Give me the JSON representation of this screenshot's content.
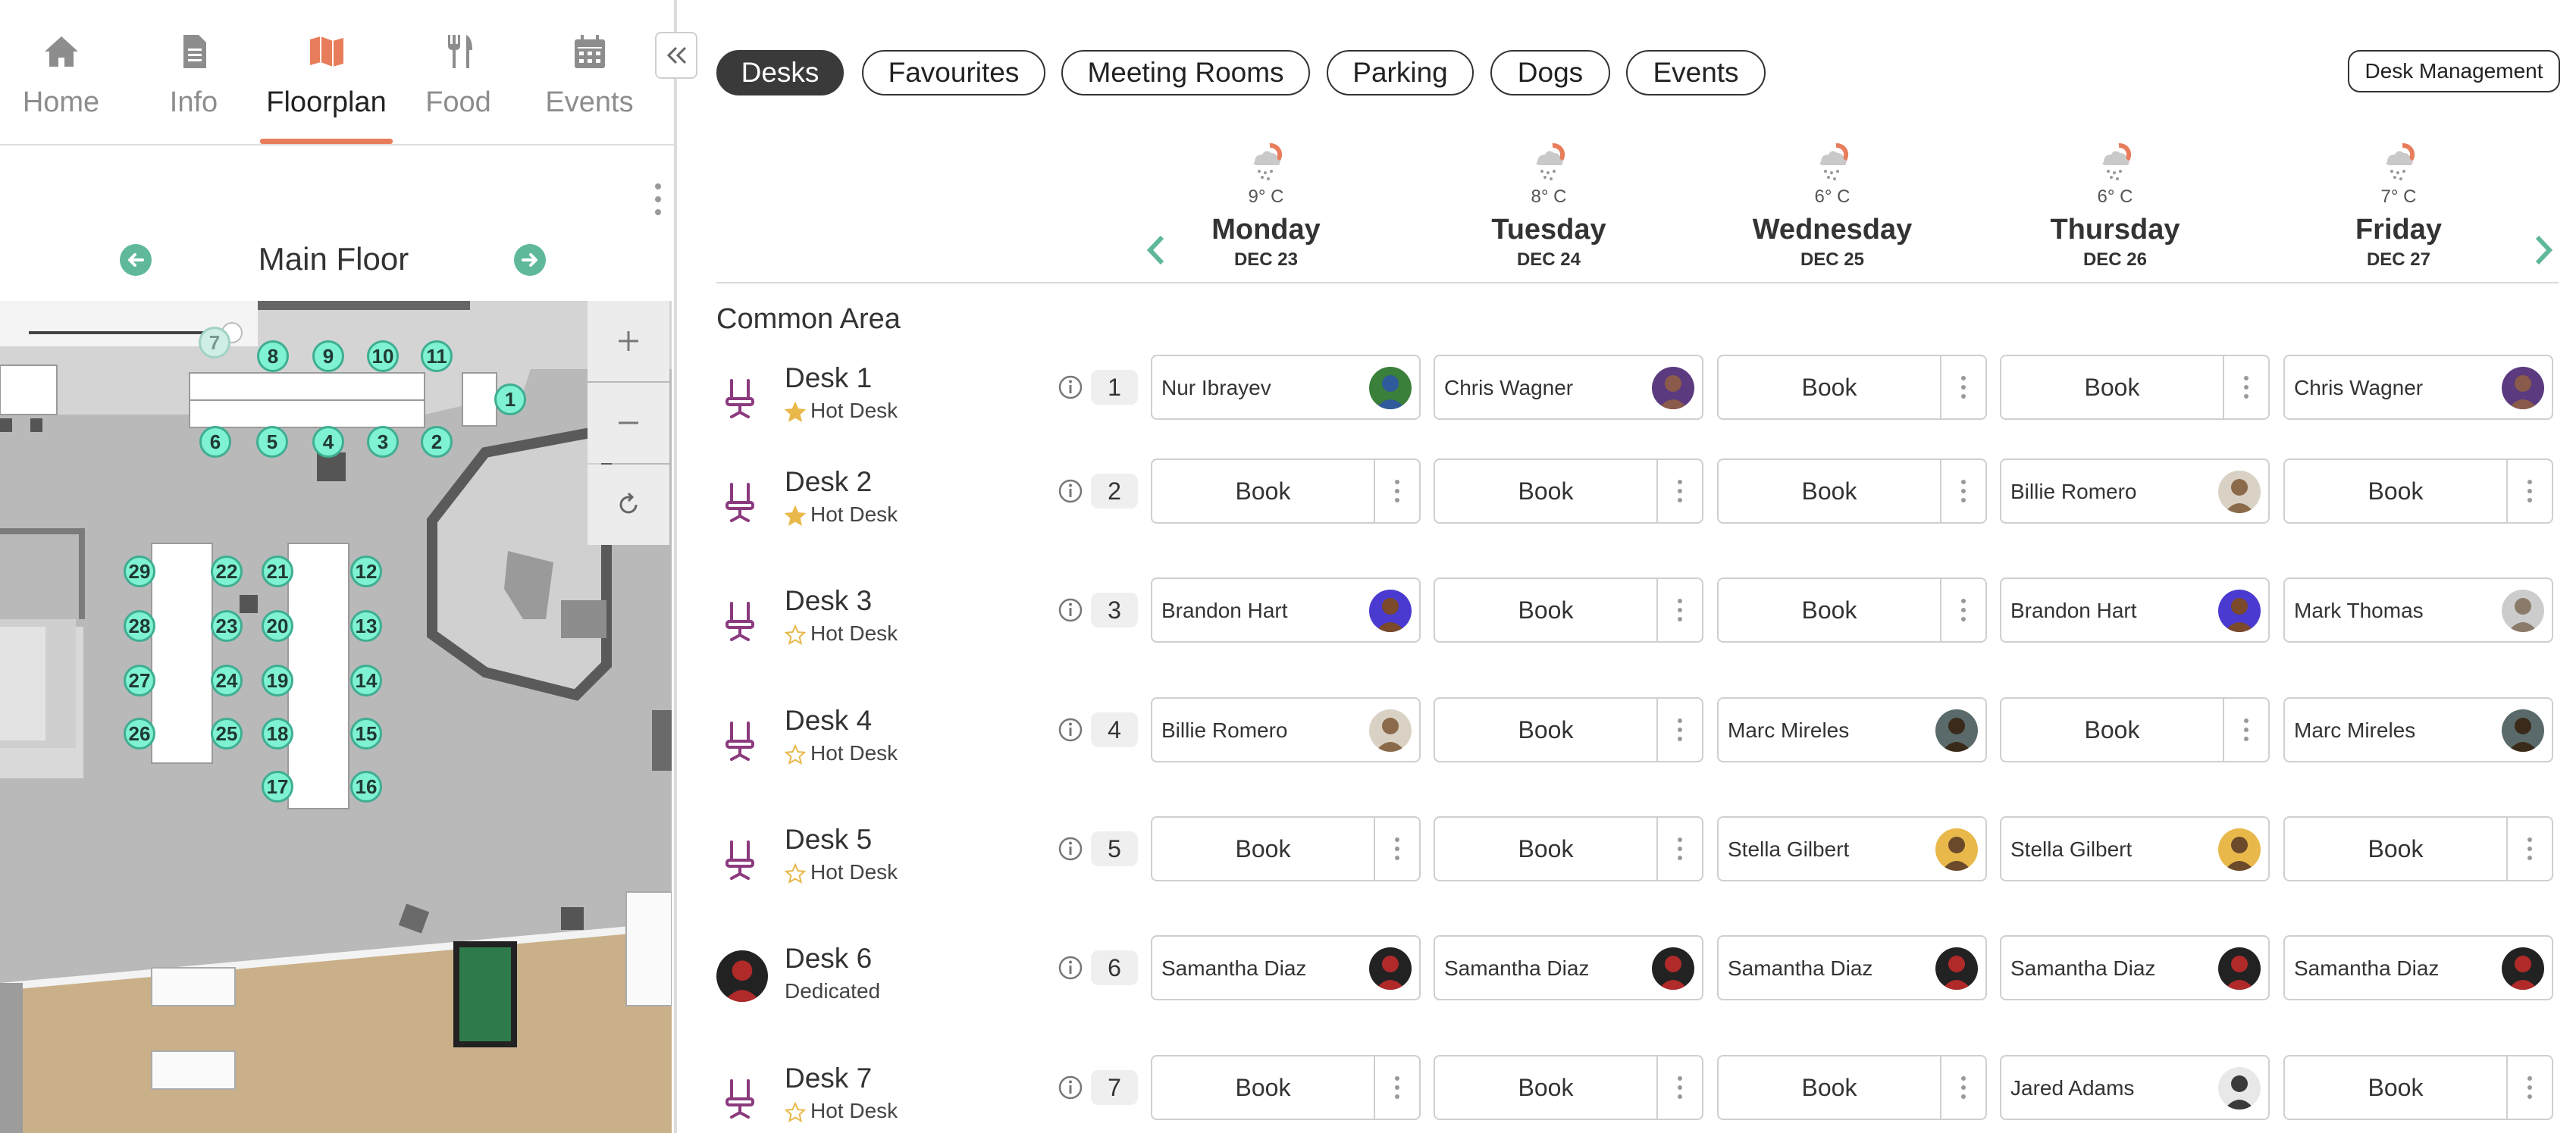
{
  "nav": {
    "items": [
      {
        "label": "Home",
        "icon": "home-icon"
      },
      {
        "label": "Info",
        "icon": "document-icon"
      },
      {
        "label": "Floorplan",
        "icon": "map-icon",
        "active": true
      },
      {
        "label": "Food",
        "icon": "fork-knife-icon"
      },
      {
        "label": "Events",
        "icon": "calendar-icon"
      }
    ]
  },
  "floor": {
    "title": "Main Floor"
  },
  "map": {
    "pins": [
      "7",
      "8",
      "9",
      "10",
      "11",
      "1",
      "6",
      "5",
      "4",
      "3",
      "2",
      "29",
      "22",
      "21",
      "12",
      "28",
      "23",
      "20",
      "13",
      "27",
      "24",
      "19",
      "14",
      "26",
      "25",
      "18",
      "15",
      "17",
      "16"
    ]
  },
  "tabs": [
    {
      "label": "Desks",
      "active": true
    },
    {
      "label": "Favourites"
    },
    {
      "label": "Meeting Rooms"
    },
    {
      "label": "Parking"
    },
    {
      "label": "Dogs"
    },
    {
      "label": "Events"
    }
  ],
  "desk_management": "Desk Management",
  "days": [
    {
      "name": "Monday",
      "date": "DEC 23",
      "temp": "9° C"
    },
    {
      "name": "Tuesday",
      "date": "DEC 24",
      "temp": "8° C"
    },
    {
      "name": "Wednesday",
      "date": "DEC 25",
      "temp": "6° C"
    },
    {
      "name": "Thursday",
      "date": "DEC 26",
      "temp": "6° C"
    },
    {
      "name": "Friday",
      "date": "DEC 27",
      "temp": "7° C"
    }
  ],
  "section": "Common Area",
  "book_label": "Book",
  "colors": {
    "accent": "#e87d5c",
    "pin": "#7ef2d2",
    "arrow": "#5fb89a",
    "desk_icon": "#8b3a7e",
    "star": "#e8b84a"
  },
  "desks": [
    {
      "name": "Desk 1",
      "type": "Hot Desk",
      "number": "1",
      "favourite": true,
      "bookings": [
        "Nur Ibrayev",
        "Chris Wagner",
        null,
        null,
        "Chris Wagner"
      ]
    },
    {
      "name": "Desk 2",
      "type": "Hot Desk",
      "number": "2",
      "favourite": true,
      "bookings": [
        null,
        null,
        null,
        "Billie Romero",
        null
      ]
    },
    {
      "name": "Desk 3",
      "type": "Hot Desk",
      "number": "3",
      "favourite": false,
      "bookings": [
        "Brandon Hart",
        null,
        null,
        "Brandon Hart",
        "Mark Thomas"
      ]
    },
    {
      "name": "Desk 4",
      "type": "Hot Desk",
      "number": "4",
      "favourite": false,
      "bookings": [
        "Billie Romero",
        null,
        "Marc Mireles",
        null,
        "Marc Mireles"
      ]
    },
    {
      "name": "Desk 5",
      "type": "Hot Desk",
      "number": "5",
      "favourite": false,
      "bookings": [
        null,
        null,
        "Stella Gilbert",
        "Stella Gilbert",
        null
      ]
    },
    {
      "name": "Desk 6",
      "type": "Dedicated",
      "number": "6",
      "dedicated": true,
      "bookings": [
        "Samantha Diaz",
        "Samantha Diaz",
        "Samantha Diaz",
        "Samantha Diaz",
        "Samantha Diaz"
      ]
    },
    {
      "name": "Desk 7",
      "type": "Hot Desk",
      "number": "7",
      "favourite": false,
      "bookings": [
        null,
        null,
        null,
        "Jared Adams",
        null
      ]
    }
  ]
}
